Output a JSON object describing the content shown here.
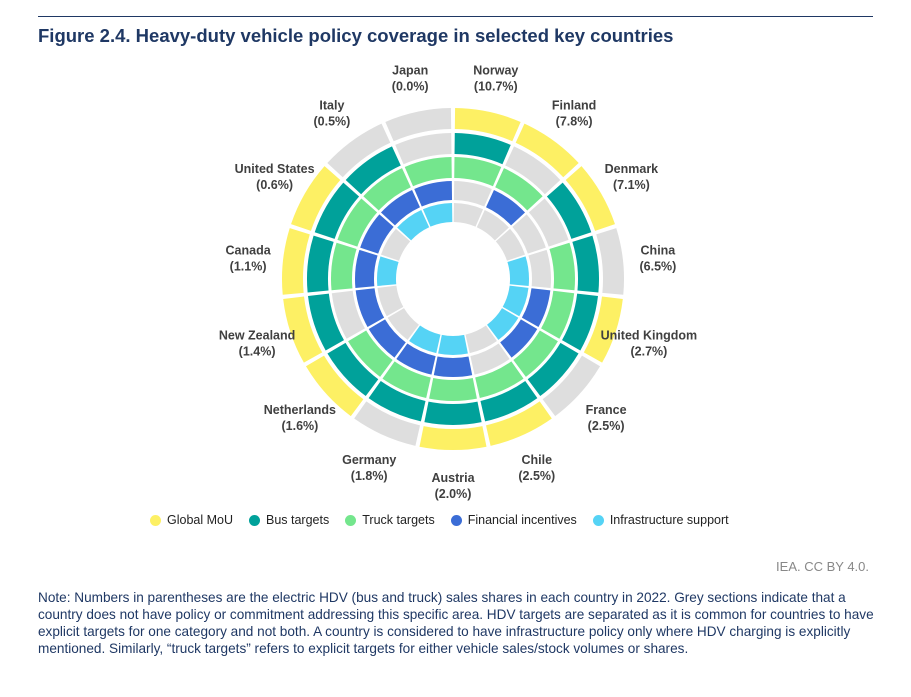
{
  "figure": {
    "title": "Figure 2.4. Heavy-duty vehicle policy coverage in selected key countries",
    "source": "IEA. CC BY 4.0.",
    "note": "Note: Numbers in parentheses are the electric HDV (bus and truck) sales shares in each country in 2022. Grey sections indicate that a country does not have policy or commitment addressing this specific area. HDV targets are separated as it is common for countries to have explicit targets for one category and not both. A country is considered to have infrastructure policy only where HDV charging is explicitly mentioned. Similarly, “truck targets” refers to explicit targets for either vehicle sales/stock volumes or shares."
  },
  "chart_data": {
    "type": "radial",
    "countries": [
      {
        "name": "Norway",
        "share": "(10.7%)",
        "policies": [
          1,
          1,
          1,
          0,
          0
        ]
      },
      {
        "name": "Finland",
        "share": "(7.8%)",
        "policies": [
          1,
          0,
          1,
          1,
          0
        ]
      },
      {
        "name": "Denmark",
        "share": "(7.1%)",
        "policies": [
          1,
          1,
          0,
          0,
          0
        ]
      },
      {
        "name": "China",
        "share": "(6.5%)",
        "policies": [
          0,
          1,
          1,
          0,
          1
        ]
      },
      {
        "name": "United Kingdom",
        "share": "(2.7%)",
        "policies": [
          1,
          1,
          1,
          1,
          1
        ]
      },
      {
        "name": "France",
        "share": "(2.5%)",
        "policies": [
          0,
          1,
          1,
          1,
          1
        ]
      },
      {
        "name": "Chile",
        "share": "(2.5%)",
        "policies": [
          1,
          1,
          1,
          0,
          0
        ]
      },
      {
        "name": "Austria",
        "share": "(2.0%)",
        "policies": [
          1,
          1,
          1,
          1,
          1
        ]
      },
      {
        "name": "Germany",
        "share": "(1.8%)",
        "policies": [
          0,
          1,
          1,
          1,
          1
        ]
      },
      {
        "name": "Netherlands",
        "share": "(1.6%)",
        "policies": [
          1,
          1,
          1,
          1,
          0
        ]
      },
      {
        "name": "New Zealand",
        "share": "(1.4%)",
        "policies": [
          1,
          1,
          0,
          1,
          0
        ]
      },
      {
        "name": "Canada",
        "share": "(1.1%)",
        "policies": [
          1,
          1,
          1,
          1,
          1
        ]
      },
      {
        "name": "United States",
        "share": "(0.6%)",
        "policies": [
          1,
          1,
          1,
          1,
          0
        ]
      },
      {
        "name": "Italy",
        "share": "(0.5%)",
        "policies": [
          0,
          1,
          1,
          1,
          1
        ]
      },
      {
        "name": "Japan",
        "share": "(0.0%)",
        "policies": [
          0,
          0,
          1,
          1,
          1
        ]
      }
    ],
    "rings": [
      "Global MoU",
      "Bus targets",
      "Truck targets",
      "Financial incentives",
      "Infrastructure support"
    ],
    "colors": {
      "Global MoU": "#fdf064",
      "Bus targets": "#00a19a",
      "Truck targets": "#74e68d",
      "Financial incentives": "#3b6dd6",
      "Infrastructure support": "#55d3f5",
      "none": "#dedede"
    },
    "legend": [
      "Global MoU",
      "Bus targets",
      "Truck targets",
      "Financial incentives",
      "Infrastructure support"
    ],
    "legend_position": "bottom"
  }
}
